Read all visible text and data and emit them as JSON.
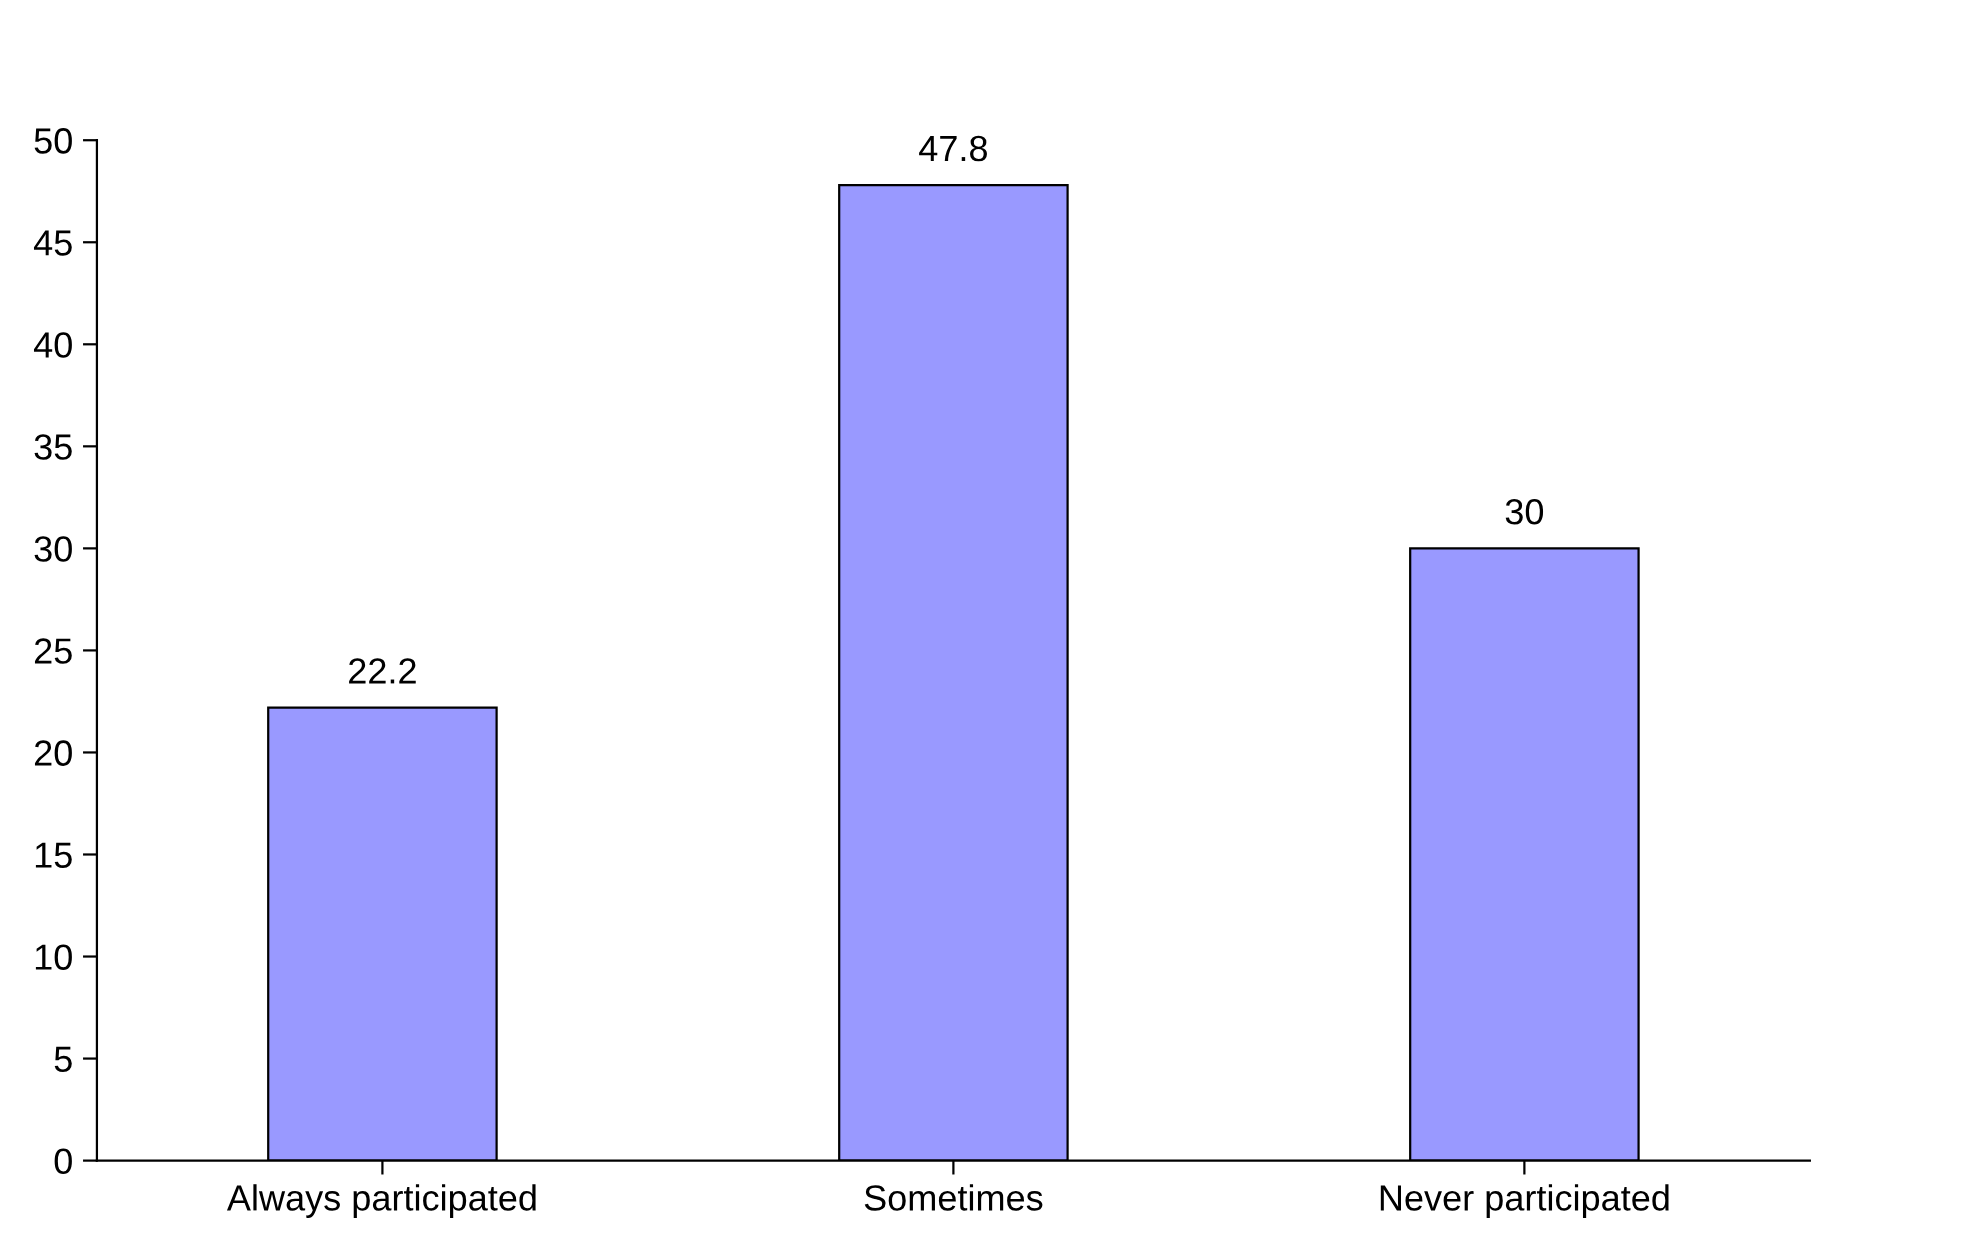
{
  "chart_data": {
    "type": "bar",
    "categories": [
      "Always participated",
      "Sometimes",
      "Never participated"
    ],
    "values": [
      22.2,
      47.8,
      30
    ],
    "color": "#9999ff",
    "ylim": [
      0,
      50
    ],
    "yticks": [
      0,
      5,
      10,
      15,
      20,
      25,
      30,
      35,
      40,
      45,
      50
    ],
    "data_labels": true,
    "grid": false
  }
}
